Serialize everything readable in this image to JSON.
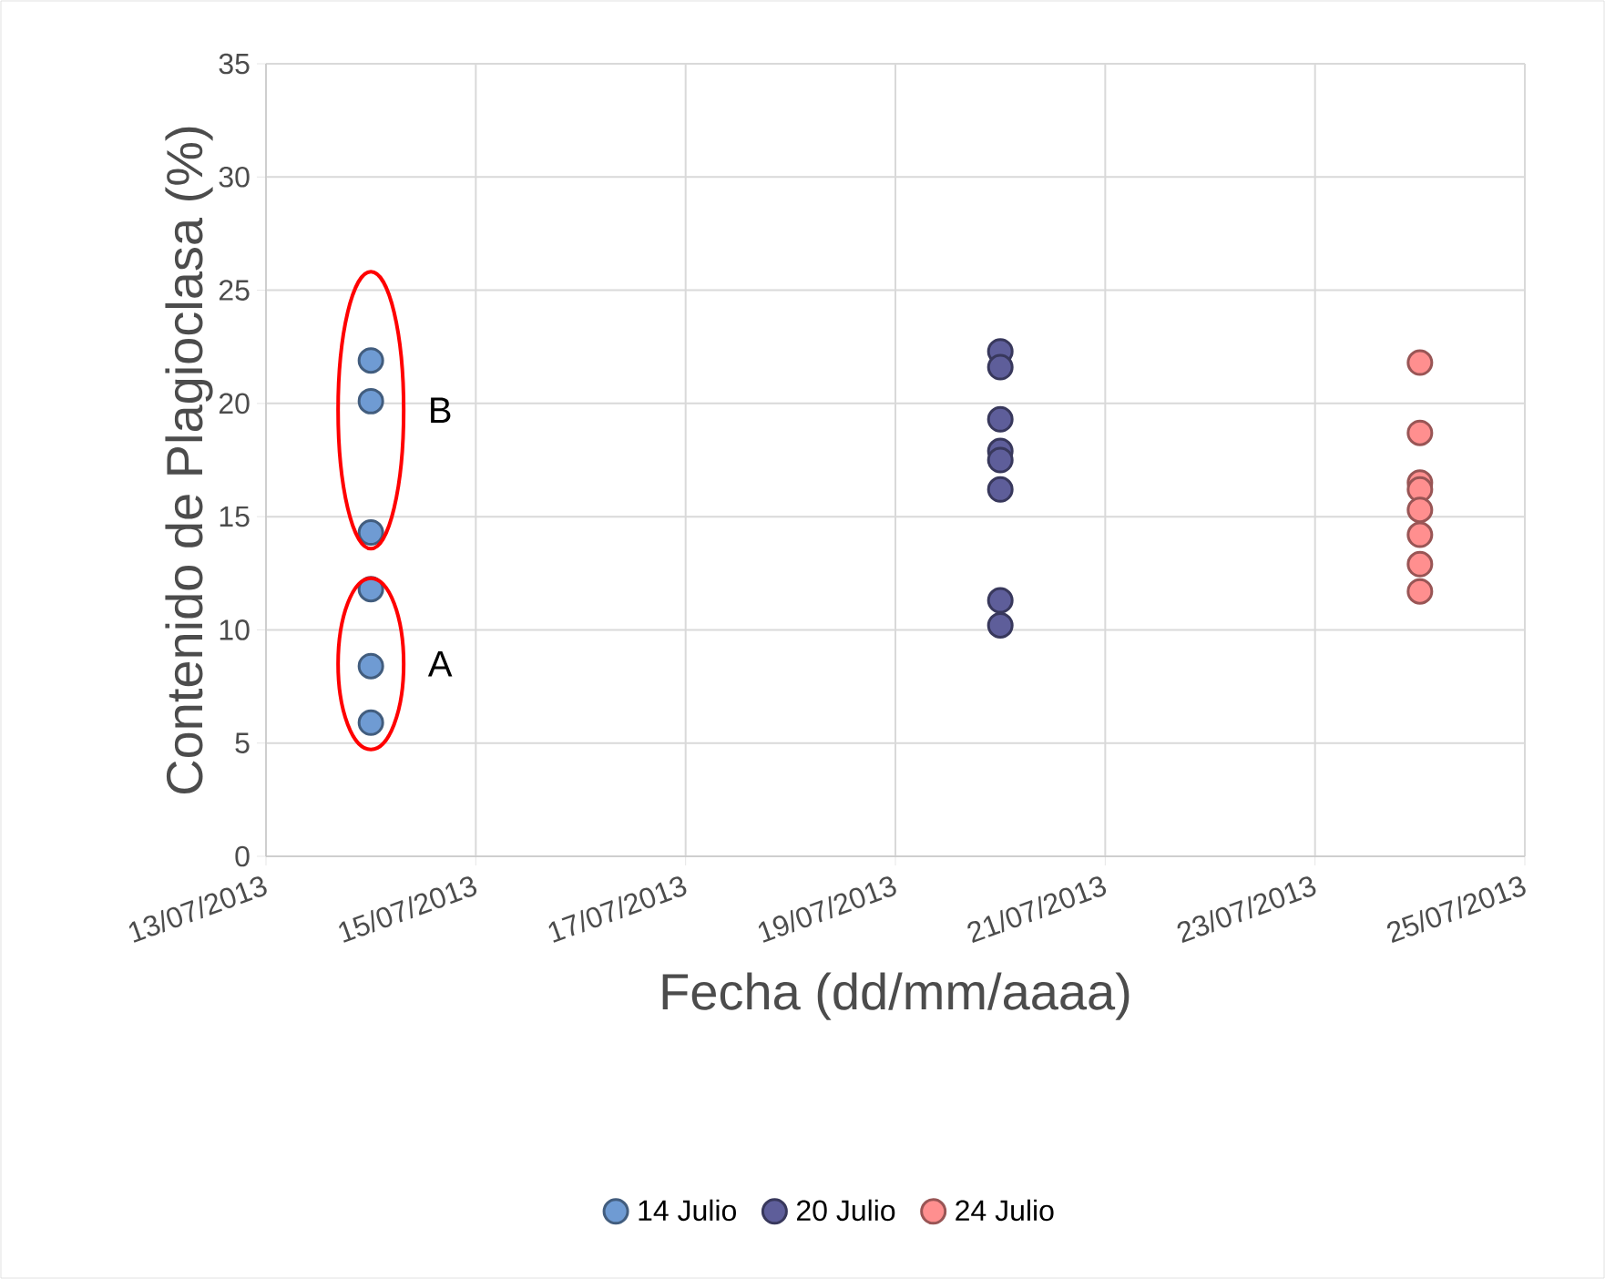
{
  "chart_data": {
    "type": "scatter",
    "xlabel": "Fecha (dd/mm/aaaa)",
    "ylabel": "Contenido de Plagioclasa (%)",
    "xlim": [
      "2013-07-13",
      "2013-07-25"
    ],
    "xticks": [
      {
        "value": "2013-07-13",
        "label": "13/07/2013"
      },
      {
        "value": "2013-07-15",
        "label": "15/07/2013"
      },
      {
        "value": "2013-07-17",
        "label": "17/07/2013"
      },
      {
        "value": "2013-07-19",
        "label": "19/07/2013"
      },
      {
        "value": "2013-07-21",
        "label": "21/07/2013"
      },
      {
        "value": "2013-07-23",
        "label": "23/07/2013"
      },
      {
        "value": "2013-07-25",
        "label": "25/07/2013"
      }
    ],
    "ylim": [
      0,
      35
    ],
    "yticks": [
      0,
      5,
      10,
      15,
      20,
      25,
      30,
      35
    ],
    "series": [
      {
        "name": "14 Julio",
        "color": "#6f9bd3",
        "x": [
          "2013-07-14",
          "2013-07-14",
          "2013-07-14",
          "2013-07-14",
          "2013-07-14",
          "2013-07-14"
        ],
        "values": [
          21.9,
          20.1,
          14.3,
          11.8,
          8.4,
          5.9
        ]
      },
      {
        "name": "20 Julio",
        "color": "#5e5e9a",
        "x": [
          "2013-07-20",
          "2013-07-20",
          "2013-07-20",
          "2013-07-20",
          "2013-07-20",
          "2013-07-20",
          "2013-07-20",
          "2013-07-20"
        ],
        "values": [
          22.3,
          21.6,
          19.3,
          17.9,
          17.5,
          16.2,
          11.3,
          10.2
        ]
      },
      {
        "name": "24 Julio",
        "color": "#ff8f8f",
        "x": [
          "2013-07-24",
          "2013-07-24",
          "2013-07-24",
          "2013-07-24",
          "2013-07-24",
          "2013-07-24",
          "2013-07-24",
          "2013-07-24"
        ],
        "values": [
          21.8,
          18.7,
          16.5,
          16.2,
          15.3,
          14.2,
          12.9,
          11.7
        ]
      }
    ],
    "annotations": [
      {
        "text": "B",
        "x": "2013-07-14",
        "y": 19.7
      },
      {
        "text": "A",
        "x": "2013-07-14",
        "y": 8.5
      }
    ],
    "marker": "circle",
    "grid": true,
    "legend": "bottom"
  }
}
